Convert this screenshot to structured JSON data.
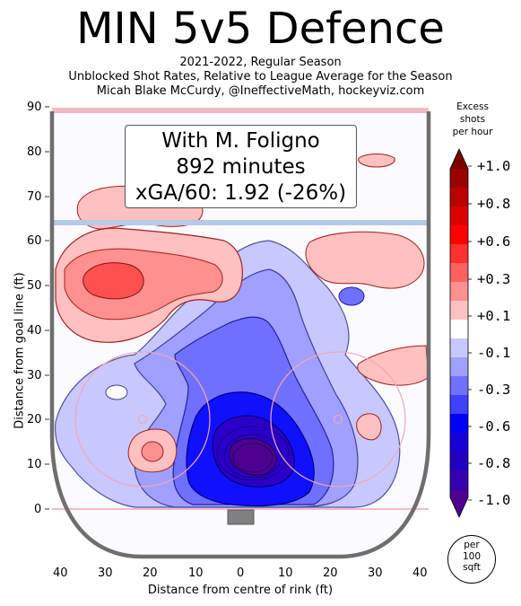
{
  "title": "MIN 5v5 Defence",
  "subtitle_lines": [
    "2021-2022, Regular Season",
    "Unblocked Shot Rates, Relative to League Average for the Season",
    "Micah Blake McCurdy, @IneffectiveMath, hockeyviz.com"
  ],
  "info_box": {
    "line1": "With M. Foligno",
    "line2": "892 minutes",
    "line3": "xGA/60: 1.92 (-26%)"
  },
  "colorbar": {
    "title_lines": [
      "Excess",
      "shots",
      "per hour"
    ],
    "labels": [
      "+1.0",
      "+0.8",
      "+0.6",
      "+0.3",
      "+0.1",
      "-0.1",
      "-0.3",
      "-0.6",
      "-0.8",
      "-1.0"
    ],
    "colors_top_to_bottom": [
      "#7a0000",
      "#9a0000",
      "#bb0000",
      "#dd0000",
      "#ff0000",
      "#ff3030",
      "#ff6060",
      "#ff9090",
      "#ffc0c0",
      "#ffffff",
      "#c8c8ff",
      "#a0a0ff",
      "#7070ff",
      "#4040ff",
      "#0000ff",
      "#1a00d8",
      "#3400b0",
      "#4e0090"
    ]
  },
  "units_badge": [
    "per",
    "100",
    "sqft"
  ],
  "chart_data": {
    "type": "heatmap",
    "title": "MIN 5v5 Defence",
    "xlabel": "Distance from centre of rink (ft)",
    "ylabel": "Distance from goal line (ft)",
    "x_ticks": [
      "40",
      "30",
      "20",
      "10",
      "0",
      "10",
      "20",
      "30",
      "40"
    ],
    "y_ticks": [
      "0",
      "10",
      "20",
      "30",
      "40",
      "50",
      "60",
      "70",
      "80",
      "90"
    ],
    "xlim": [
      -42.5,
      42.5
    ],
    "ylim": [
      -11,
      89
    ],
    "colorbar_range": [
      -1.0,
      1.0
    ],
    "regions": [
      {
        "name": "slot",
        "x": 0,
        "y": 11,
        "value": -1.0
      },
      {
        "name": "left-circle-top",
        "x": -24,
        "y": 13,
        "value": 0.3
      },
      {
        "name": "right-circle",
        "x": 27,
        "y": 19,
        "value": 0.1
      },
      {
        "name": "left-point",
        "x": -30,
        "y": 52,
        "value": 0.6
      },
      {
        "name": "right-point",
        "x": 30,
        "y": 57,
        "value": 0.1
      },
      {
        "name": "right-high",
        "x": 32,
        "y": 78,
        "value": 0.3
      },
      {
        "name": "right-high-slot",
        "x": 25,
        "y": 47,
        "value": -0.3
      },
      {
        "name": "left-wall-low",
        "x": -28,
        "y": 26,
        "value": -0.1
      },
      {
        "name": "right-faceoff-dot-area",
        "x": 37,
        "y": 35,
        "value": 0.1
      }
    ]
  }
}
